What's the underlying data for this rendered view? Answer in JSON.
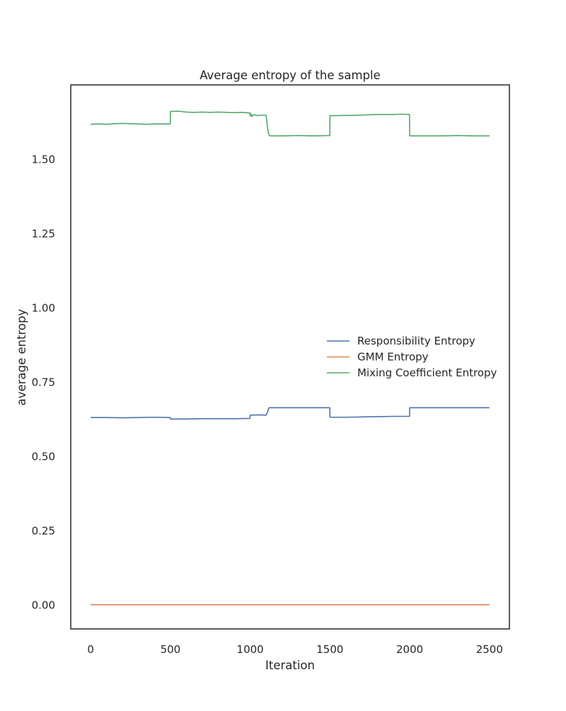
{
  "chart_data": {
    "type": "line",
    "title": "Average entropy of the sample",
    "xlabel": "Iteration",
    "ylabel": "average entropy",
    "xlim": [
      -125,
      2625
    ],
    "ylim": [
      -0.0815,
      1.7495
    ],
    "x_ticks": [
      0,
      500,
      1000,
      1500,
      2000,
      2500
    ],
    "y_ticks": [
      0.0,
      0.25,
      0.5,
      0.75,
      1.0,
      1.25,
      1.5
    ],
    "x_tick_labels": [
      "0",
      "500",
      "1000",
      "1500",
      "2000",
      "2500"
    ],
    "y_tick_labels": [
      "0.00",
      "0.25",
      "0.50",
      "0.75",
      "1.00",
      "1.25",
      "1.50"
    ],
    "grid": false,
    "legend_position": "center-right",
    "series": [
      {
        "name": "Responsibility Entropy",
        "color": "#4c72b0",
        "x": [
          0,
          100,
          200,
          300,
          400,
          499,
          500,
          600,
          700,
          800,
          900,
          999,
          1000,
          1050,
          1100,
          1110,
          1115,
          1120,
          1200,
          1300,
          1400,
          1499,
          1500,
          1600,
          1700,
          1800,
          1900,
          1999,
          2000,
          2100,
          2200,
          2300,
          2400,
          2500
        ],
        "y": [
          0.63,
          0.63,
          0.629,
          0.63,
          0.631,
          0.63,
          0.625,
          0.625,
          0.626,
          0.626,
          0.626,
          0.627,
          0.638,
          0.639,
          0.638,
          0.65,
          0.66,
          0.663,
          0.663,
          0.663,
          0.663,
          0.663,
          0.631,
          0.631,
          0.632,
          0.633,
          0.634,
          0.634,
          0.663,
          0.663,
          0.663,
          0.663,
          0.663,
          0.663
        ]
      },
      {
        "name": "GMM Entropy",
        "color": "#dd8452",
        "x": [
          0,
          2500
        ],
        "y": [
          0.0,
          0.0
        ]
      },
      {
        "name": "Mixing Coefficient Entropy",
        "color": "#55a868",
        "x": [
          0,
          50,
          100,
          150,
          200,
          250,
          300,
          350,
          400,
          450,
          499,
          500,
          550,
          600,
          650,
          700,
          750,
          800,
          850,
          900,
          950,
          999,
          1000,
          1005,
          1010,
          1020,
          1050,
          1080,
          1100,
          1110,
          1115,
          1120,
          1125,
          1200,
          1300,
          1400,
          1499,
          1500,
          1550,
          1600,
          1650,
          1700,
          1750,
          1800,
          1850,
          1900,
          1950,
          1999,
          2000,
          2100,
          2200,
          2300,
          2400,
          2500
        ],
        "y": [
          1.617,
          1.618,
          1.617,
          1.619,
          1.62,
          1.619,
          1.618,
          1.617,
          1.618,
          1.618,
          1.618,
          1.66,
          1.661,
          1.658,
          1.657,
          1.658,
          1.657,
          1.658,
          1.657,
          1.656,
          1.657,
          1.655,
          1.645,
          1.652,
          1.643,
          1.649,
          1.646,
          1.648,
          1.647,
          1.6,
          1.585,
          1.58,
          1.578,
          1.578,
          1.579,
          1.578,
          1.579,
          1.646,
          1.646,
          1.647,
          1.647,
          1.648,
          1.649,
          1.65,
          1.65,
          1.65,
          1.651,
          1.65,
          1.578,
          1.578,
          1.578,
          1.579,
          1.578,
          1.578
        ]
      }
    ]
  }
}
